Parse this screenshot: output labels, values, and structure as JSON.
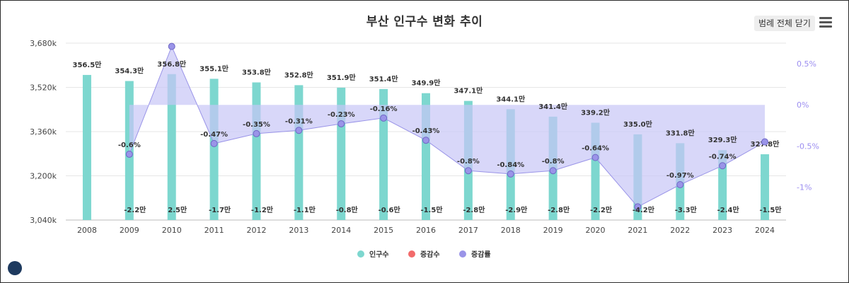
{
  "header": {
    "title": "부산 인구수 변화 추이",
    "legend_toggle_label": "범례 전체 닫기"
  },
  "icons": {
    "menu": "hamburger-menu-icon",
    "logo": "home-logo-icon"
  },
  "colors": {
    "bar": "#7dd7cf",
    "change_count": "#f26b6b",
    "rate": "#9a94e8",
    "rate_fill": "#c8c6f6"
  },
  "chart_data": {
    "type": "bar",
    "title": "부산 인구수 변화 추이",
    "categories": [
      "2008",
      "2009",
      "2010",
      "2011",
      "2012",
      "2013",
      "2014",
      "2015",
      "2016",
      "2017",
      "2018",
      "2019",
      "2020",
      "2021",
      "2022",
      "2023",
      "2024"
    ],
    "series": [
      {
        "name": "인구수",
        "axis": "left",
        "values": [
          3565000,
          3543000,
          3568000,
          3551000,
          3538000,
          3528000,
          3519000,
          3514000,
          3499000,
          3471000,
          3441000,
          3414000,
          3392000,
          3350000,
          3318000,
          3293000,
          3278000
        ],
        "labels": [
          "356.5만",
          "354.3만",
          "356.8만",
          "355.1만",
          "353.8만",
          "352.8만",
          "351.9만",
          "351.4만",
          "349.9만",
          "347.1만",
          "344.1만",
          "341.4만",
          "339.2만",
          "335.0만",
          "331.8만",
          "329.3만",
          "327.8만"
        ]
      },
      {
        "name": "증감수",
        "axis": "none",
        "values": [
          null,
          -22000,
          25000,
          -17000,
          -12000,
          -11000,
          -8000,
          -6000,
          -15000,
          -28000,
          -29000,
          -28000,
          -22000,
          -42000,
          -33000,
          -24000,
          -15000
        ],
        "labels": [
          "",
          "-2.2만",
          "2.5만",
          "-1.7만",
          "-1.2만",
          "-1.1만",
          "-0.8만",
          "-0.6만",
          "-1.5만",
          "-2.8만",
          "-2.9만",
          "-2.8만",
          "-2.2만",
          "-4.2만",
          "-3.3만",
          "-2.4만",
          "-1.5만"
        ]
      },
      {
        "name": "증감률",
        "axis": "right",
        "type": "area",
        "values": [
          null,
          -0.6,
          0.71,
          -0.47,
          -0.35,
          -0.31,
          -0.23,
          -0.16,
          -0.43,
          -0.8,
          -0.84,
          -0.8,
          -0.64,
          -1.24,
          -0.97,
          -0.74,
          -0.45
        ],
        "labels": [
          "",
          "-0.6%",
          "",
          "-0.47%",
          "-0.35%",
          "-0.31%",
          "-0.23%",
          "-0.16%",
          "-0.43%",
          "-0.8%",
          "-0.84%",
          "-0.8%",
          "-0.64%",
          "",
          "-0.97%",
          "-0.74%",
          ""
        ]
      }
    ],
    "left_axis": {
      "min": 3040000,
      "max": 3680000,
      "ticks": [
        3040000,
        3200000,
        3360000,
        3520000,
        3680000
      ],
      "tick_labels": [
        "3,040k",
        "3,200k",
        "3,360k",
        "3,520k",
        "3,680k"
      ]
    },
    "right_axis": {
      "min": -1.4,
      "max": 0.75,
      "ticks": [
        0.5,
        0,
        -0.5,
        -1
      ],
      "tick_labels": [
        "0.5%",
        "0%",
        "-0.5%",
        "-1%"
      ]
    },
    "legend": {
      "position": "bottom-center",
      "items": [
        "인구수",
        "증감수",
        "증감률"
      ]
    }
  }
}
